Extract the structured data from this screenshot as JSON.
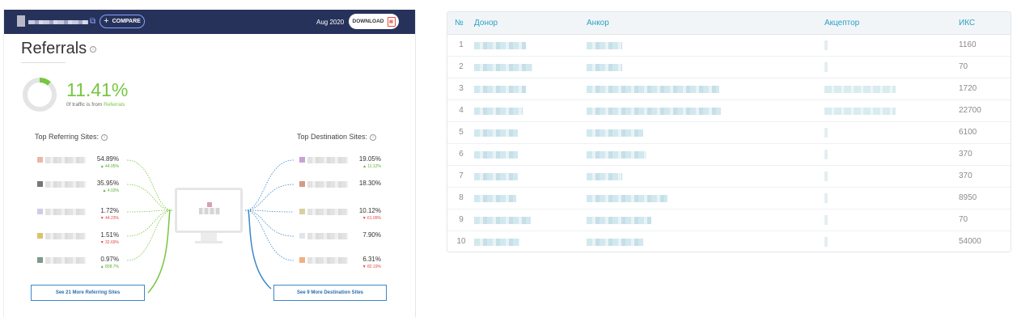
{
  "left_panel": {
    "header": {
      "compare_label": "COMPARE",
      "date": "Aug 2020",
      "download_label": "DOWNLOAD",
      "pdf_icon": "pdf-file-icon"
    },
    "title": "Referrals",
    "traffic_share": {
      "value": "11.41%",
      "caption_prefix": "0f traffic is from",
      "caption_link": "Referrals",
      "fraction": 0.1141
    },
    "top_referring": {
      "heading": "Top Referring Sites:",
      "items": [
        {
          "value": "54.89%",
          "change": "44.05%",
          "dir": "up",
          "favicon_color": "#e8b8a6"
        },
        {
          "value": "35.95%",
          "change": "4.03%",
          "dir": "up",
          "favicon_color": "#777777"
        },
        {
          "value": "1.72%",
          "change": "44.23%",
          "dir": "down",
          "favicon_color": "#cfcbe8"
        },
        {
          "value": "1.51%",
          "change": "32.69%",
          "dir": "down",
          "favicon_color": "#d8c46a"
        },
        {
          "value": "0.97%",
          "change": "808.7%",
          "dir": "up",
          "favicon_color": "#7d9a8a"
        }
      ],
      "more_label": "See 21 More Referring Sites"
    },
    "top_destination": {
      "heading": "Top Destination Sites:",
      "items": [
        {
          "value": "19.05%",
          "change": "11.12%",
          "dir": "up",
          "favicon_color": "#c9a0d8"
        },
        {
          "value": "18.30%",
          "change": "",
          "dir": "",
          "favicon_color": "#d29a8a"
        },
        {
          "value": "10.12%",
          "change": "61.09%",
          "dir": "down",
          "favicon_color": "#d8d0a0"
        },
        {
          "value": "7.90%",
          "change": "",
          "dir": "",
          "favicon_color": "#e0e4ef"
        },
        {
          "value": "6.31%",
          "change": "82.19%",
          "dir": "down",
          "favicon_color": "#f0b080"
        }
      ],
      "more_label": "See 9 More Destination Sites"
    },
    "colors": {
      "referring": "#77c641",
      "destination": "#3d87c9",
      "header_bg": "#27325b"
    }
  },
  "table": {
    "headers": {
      "num": "№",
      "donor": "Донор",
      "anchor": "Анкор",
      "acceptor": "Акцептор",
      "iks": "ИКС"
    },
    "rows": [
      {
        "num": "1",
        "iks": "1160"
      },
      {
        "num": "2",
        "iks": "70"
      },
      {
        "num": "3",
        "iks": "1720"
      },
      {
        "num": "4",
        "iks": "22700"
      },
      {
        "num": "5",
        "iks": "6100"
      },
      {
        "num": "6",
        "iks": "370"
      },
      {
        "num": "7",
        "iks": "370"
      },
      {
        "num": "8",
        "iks": "8950"
      },
      {
        "num": "9",
        "iks": "70"
      },
      {
        "num": "10",
        "iks": "54000"
      }
    ]
  }
}
